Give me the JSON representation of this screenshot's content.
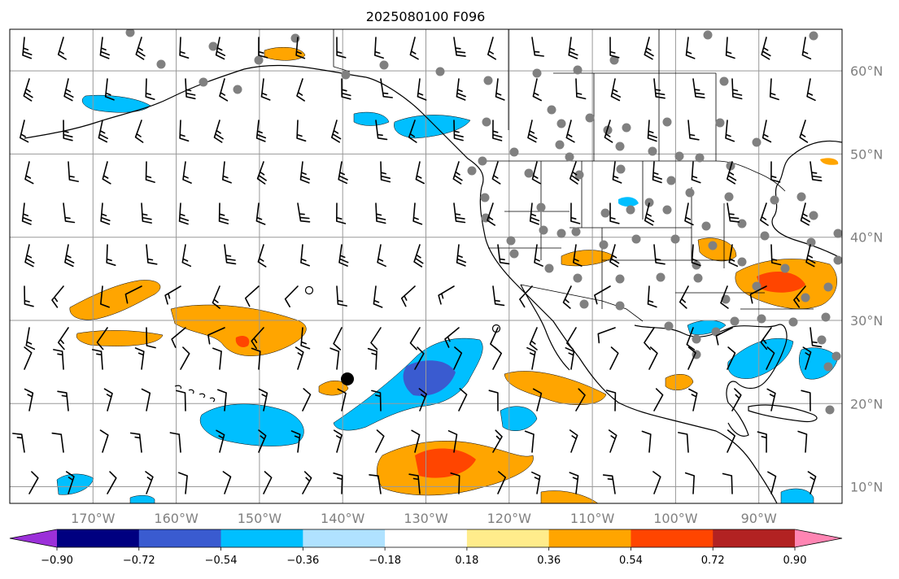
{
  "title": "2025080100 F096",
  "map": {
    "lon_range": [
      -180,
      -80
    ],
    "lat_range": [
      8,
      65
    ],
    "grid_lons": [
      -170,
      -160,
      -150,
      -140,
      -130,
      -120,
      -110,
      -100,
      -90
    ],
    "grid_lats": [
      10,
      20,
      30,
      40,
      50,
      60
    ],
    "lon_labels": [
      "170°W",
      "160°W",
      "150°W",
      "140°W",
      "130°W",
      "120°W",
      "110°W",
      "100°W",
      "90°W"
    ],
    "lat_labels": [
      "10°N",
      "20°N",
      "30°N",
      "40°N",
      "50°N",
      "60°N"
    ]
  },
  "colorbar": {
    "boundaries": [
      -0.9,
      -0.72,
      -0.54,
      -0.36,
      -0.18,
      0.18,
      0.36,
      0.54,
      0.72,
      0.9
    ],
    "labels": [
      "−0.90",
      "−0.72",
      "−0.54",
      "−0.36",
      "−0.18",
      "0.18",
      "0.36",
      "0.54",
      "0.72",
      "0.90"
    ],
    "colors": [
      "#9b30d9",
      "#000080",
      "#3a5bd0",
      "#00bfff",
      "#b0e2ff",
      "#ffffff",
      "#ffec8b",
      "#ffa500",
      "#ff4500",
      "#b22222",
      "#ff85b3"
    ]
  },
  "colors": {
    "station_dot": "#808080",
    "grid": "#999999",
    "tick_text": "#808080"
  }
}
